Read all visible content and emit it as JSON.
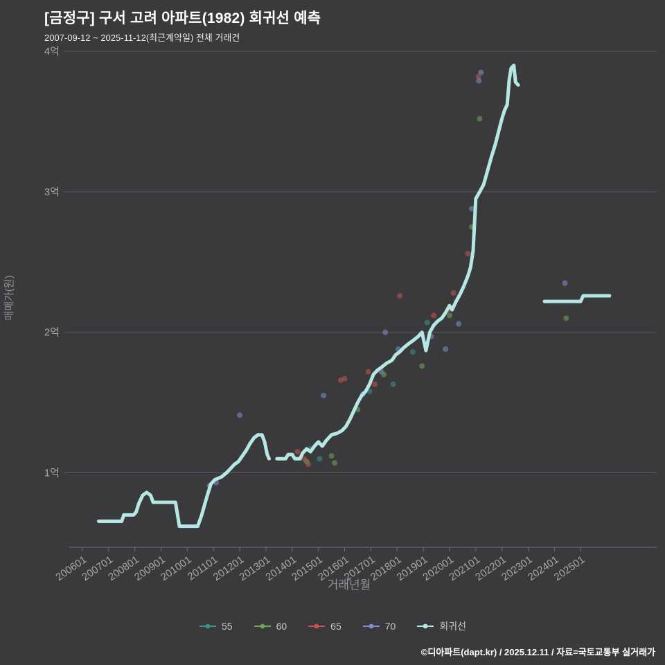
{
  "header": {
    "title": "[금정구] 구서 고려 아파트(1982) 회귀선 예측",
    "subtitle": "2007-09-12 ~ 2025-11-12(최근계약일) 전체 거래건"
  },
  "footer": {
    "credit": "©디아파트(dapt.kr) / 2025.12.11 / 자료=국토교통부 실거래가"
  },
  "chart_data": {
    "type": "line+scatter",
    "title": "[금정구] 구서 고려 아파트(1982) 회귀선 예측",
    "xlabel": "거래년월",
    "ylabel": "매매가(원)",
    "unit": "억원 (1억 = 100,000,000 KRW)",
    "grid": "horizontal-only",
    "legend_position": "bottom-center",
    "x_domain": [
      2005.5,
      2027.9
    ],
    "y_domain": [
      0.47,
      4.02
    ],
    "y_ticks": [
      {
        "value": 1,
        "label": "1억"
      },
      {
        "value": 2,
        "label": "2억"
      },
      {
        "value": 3,
        "label": "3억"
      },
      {
        "value": 4,
        "label": "4억"
      }
    ],
    "x_ticks": [
      {
        "value": 2006,
        "label": "200601"
      },
      {
        "value": 2007,
        "label": "200701"
      },
      {
        "value": 2008,
        "label": "200801"
      },
      {
        "value": 2009,
        "label": "200901"
      },
      {
        "value": 2010,
        "label": "201001"
      },
      {
        "value": 2011,
        "label": "201101"
      },
      {
        "value": 2012,
        "label": "201201"
      },
      {
        "value": 2013,
        "label": "201301"
      },
      {
        "value": 2014,
        "label": "201401"
      },
      {
        "value": 2015,
        "label": "201501"
      },
      {
        "value": 2016,
        "label": "201601"
      },
      {
        "value": 2017,
        "label": "201701"
      },
      {
        "value": 2018,
        "label": "201801"
      },
      {
        "value": 2019,
        "label": "201901"
      },
      {
        "value": 2020,
        "label": "202001"
      },
      {
        "value": 2021,
        "label": "202101"
      },
      {
        "value": 2022,
        "label": "202201"
      },
      {
        "value": 2023,
        "label": "202301"
      },
      {
        "value": 2024,
        "label": "202401"
      },
      {
        "value": 2025,
        "label": "202501"
      }
    ],
    "style": {
      "background": "#3a3a3c",
      "grid_color": "#58585c",
      "axis_line_color": "#6f6f73",
      "tick_color": "#a8a8a8",
      "axis_title_color": "#929296",
      "title_color": "#ffffff"
    },
    "regression": {
      "name": "회귀선",
      "color": "#b5e8e4",
      "width": 5,
      "segments": [
        [
          [
            2006.62,
            0.655
          ],
          [
            2007.5,
            0.655
          ],
          [
            2007.58,
            0.7
          ],
          [
            2007.95,
            0.7
          ],
          [
            2008.05,
            0.72
          ],
          [
            2008.15,
            0.78
          ],
          [
            2008.3,
            0.84
          ],
          [
            2008.45,
            0.86
          ],
          [
            2008.6,
            0.84
          ],
          [
            2008.7,
            0.79
          ],
          [
            2009.55,
            0.79
          ],
          [
            2009.7,
            0.62
          ],
          [
            2010.4,
            0.62
          ],
          [
            2010.55,
            0.7
          ],
          [
            2010.75,
            0.83
          ],
          [
            2010.9,
            0.92
          ],
          [
            2011.05,
            0.95
          ],
          [
            2011.3,
            0.97
          ],
          [
            2011.5,
            1.0
          ],
          [
            2011.65,
            1.03
          ],
          [
            2011.8,
            1.06
          ],
          [
            2011.95,
            1.08
          ],
          [
            2012.1,
            1.12
          ],
          [
            2012.25,
            1.16
          ],
          [
            2012.4,
            1.21
          ],
          [
            2012.55,
            1.25
          ],
          [
            2012.7,
            1.27
          ],
          [
            2012.85,
            1.27
          ],
          [
            2012.95,
            1.22
          ],
          [
            2013.05,
            1.13
          ],
          [
            2013.12,
            1.1
          ]
        ],
        [
          [
            2013.42,
            1.1
          ],
          [
            2013.75,
            1.1
          ],
          [
            2013.85,
            1.13
          ],
          [
            2014.0,
            1.13
          ],
          [
            2014.1,
            1.1
          ],
          [
            2014.3,
            1.1
          ],
          [
            2014.4,
            1.14
          ],
          [
            2014.55,
            1.17
          ],
          [
            2014.7,
            1.15
          ],
          [
            2014.85,
            1.19
          ],
          [
            2015.0,
            1.22
          ],
          [
            2015.15,
            1.19
          ],
          [
            2015.3,
            1.23
          ],
          [
            2015.5,
            1.27
          ],
          [
            2015.7,
            1.28
          ],
          [
            2015.9,
            1.3
          ],
          [
            2016.05,
            1.33
          ],
          [
            2016.2,
            1.38
          ],
          [
            2016.35,
            1.44
          ],
          [
            2016.5,
            1.5
          ],
          [
            2016.65,
            1.55
          ],
          [
            2016.8,
            1.58
          ],
          [
            2016.95,
            1.63
          ],
          [
            2017.1,
            1.7
          ],
          [
            2017.25,
            1.73
          ],
          [
            2017.4,
            1.75
          ],
          [
            2017.6,
            1.78
          ],
          [
            2017.8,
            1.8
          ],
          [
            2017.95,
            1.84
          ],
          [
            2018.1,
            1.86
          ],
          [
            2018.25,
            1.89
          ],
          [
            2018.45,
            1.92
          ],
          [
            2018.6,
            1.94
          ],
          [
            2018.8,
            1.97
          ],
          [
            2018.95,
            2.0
          ],
          [
            2019.1,
            1.87
          ],
          [
            2019.25,
            2.0
          ],
          [
            2019.4,
            2.05
          ],
          [
            2019.55,
            2.08
          ],
          [
            2019.7,
            2.1
          ],
          [
            2019.85,
            2.14
          ],
          [
            2020.0,
            2.19
          ],
          [
            2020.1,
            2.16
          ],
          [
            2020.25,
            2.22
          ],
          [
            2020.4,
            2.27
          ],
          [
            2020.55,
            2.33
          ],
          [
            2020.7,
            2.4
          ],
          [
            2020.8,
            2.46
          ],
          [
            2020.9,
            2.58
          ],
          [
            2021.0,
            2.95
          ],
          [
            2021.15,
            3.0
          ],
          [
            2021.3,
            3.05
          ],
          [
            2021.45,
            3.15
          ],
          [
            2021.6,
            3.25
          ],
          [
            2021.75,
            3.34
          ],
          [
            2021.9,
            3.45
          ],
          [
            2022.0,
            3.52
          ],
          [
            2022.1,
            3.58
          ],
          [
            2022.2,
            3.62
          ],
          [
            2022.28,
            3.8
          ],
          [
            2022.35,
            3.88
          ],
          [
            2022.45,
            3.9
          ],
          [
            2022.52,
            3.78
          ],
          [
            2022.62,
            3.76
          ]
        ],
        [
          [
            2023.62,
            2.22
          ],
          [
            2025.0,
            2.22
          ],
          [
            2025.1,
            2.26
          ],
          [
            2026.1,
            2.26
          ]
        ]
      ]
    },
    "scatter_series": [
      {
        "key": "55",
        "name": "55",
        "color": "#3d948c",
        "opacity": 0.55,
        "points": [
          [
            2014.7,
            1.17
          ],
          [
            2015.05,
            1.1
          ],
          [
            2016.95,
            1.58
          ],
          [
            2017.85,
            1.63
          ],
          [
            2018.6,
            1.86
          ],
          [
            2019.15,
            2.07
          ]
        ]
      },
      {
        "key": "60",
        "name": "60",
        "color": "#70a857",
        "opacity": 0.55,
        "points": [
          [
            2014.55,
            1.08
          ],
          [
            2015.5,
            1.12
          ],
          [
            2015.62,
            1.07
          ],
          [
            2016.5,
            1.45
          ],
          [
            2017.5,
            1.7
          ],
          [
            2018.95,
            1.76
          ],
          [
            2020.0,
            2.12
          ],
          [
            2020.85,
            2.75
          ],
          [
            2021.15,
            3.52
          ],
          [
            2024.45,
            2.1
          ]
        ]
      },
      {
        "key": "65",
        "name": "65",
        "color": "#c45550",
        "opacity": 0.55,
        "points": [
          [
            2014.2,
            1.15
          ],
          [
            2014.45,
            1.1
          ],
          [
            2014.62,
            1.06
          ],
          [
            2015.85,
            1.66
          ],
          [
            2016.0,
            1.67
          ],
          [
            2016.9,
            1.72
          ],
          [
            2017.15,
            1.63
          ],
          [
            2018.1,
            2.26
          ],
          [
            2019.4,
            2.12
          ],
          [
            2019.95,
            2.16
          ],
          [
            2020.15,
            2.28
          ],
          [
            2020.7,
            2.56
          ],
          [
            2021.1,
            3.82
          ]
        ]
      },
      {
        "key": "70",
        "name": "70",
        "color": "#7f8fc9",
        "opacity": 0.55,
        "points": [
          [
            2010.85,
            0.91
          ],
          [
            2011.1,
            0.93
          ],
          [
            2012.0,
            1.41
          ],
          [
            2015.2,
            1.55
          ],
          [
            2016.7,
            1.56
          ],
          [
            2017.4,
            1.72
          ],
          [
            2017.55,
            2.0
          ],
          [
            2018.05,
            1.88
          ],
          [
            2019.3,
            1.97
          ],
          [
            2019.85,
            1.88
          ],
          [
            2020.35,
            2.06
          ],
          [
            2020.85,
            2.88
          ],
          [
            2021.12,
            3.79
          ],
          [
            2021.2,
            3.85
          ],
          [
            2024.4,
            2.35
          ]
        ]
      }
    ],
    "legend": [
      {
        "key": "55",
        "label": "55",
        "color": "#3d948c"
      },
      {
        "key": "60",
        "label": "60",
        "color": "#70a857"
      },
      {
        "key": "65",
        "label": "65",
        "color": "#c45550"
      },
      {
        "key": "70",
        "label": "70",
        "color": "#7f8fc9"
      },
      {
        "key": "regression",
        "label": "회귀선",
        "color": "#b5e8e4"
      }
    ]
  }
}
